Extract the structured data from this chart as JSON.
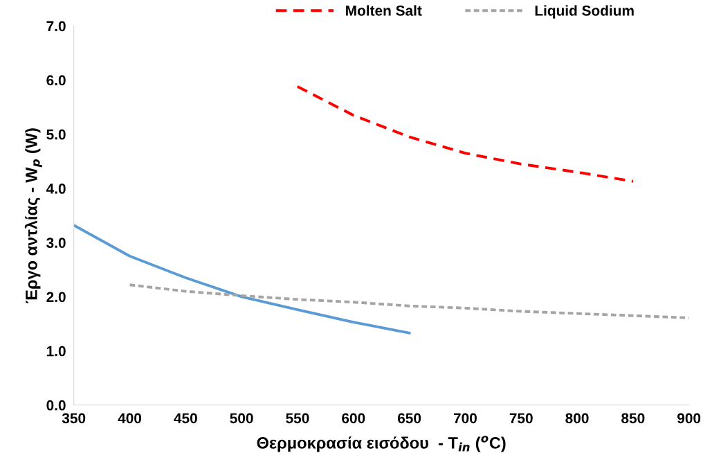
{
  "chart_data": {
    "type": "line",
    "xlabel": "Θερμοκρασία εισόδου  - T$_{in}$ ($^{o}$C)",
    "ylabel": "Έργο αντλίας - W$_{p}$ (W)",
    "xlim": [
      350,
      900
    ],
    "xticks": [
      350,
      400,
      450,
      500,
      550,
      600,
      650,
      700,
      750,
      800,
      850,
      900
    ],
    "ylim": [
      0,
      7
    ],
    "yticks": [
      {
        "value": 0,
        "label": "0.0"
      },
      {
        "value": 1,
        "label": "1.0"
      },
      {
        "value": 2,
        "label": "2.0"
      },
      {
        "value": 3,
        "label": "3.0"
      },
      {
        "value": 4,
        "label": "4.0"
      },
      {
        "value": 5,
        "label": "5.0"
      },
      {
        "value": 6,
        "label": "6.0"
      },
      {
        "value": 7,
        "label": "7.0"
      }
    ],
    "grid": false,
    "legend": "top",
    "marker": "none",
    "series": [
      {
        "color": "#5b9bd5",
        "line_style": "solid",
        "x": [
          350,
          400,
          450,
          500,
          550,
          600,
          650
        ],
        "values": [
          3.32,
          2.75,
          2.35,
          2.0,
          1.76,
          1.53,
          1.33
        ]
      },
      {
        "name": "Molten Salt",
        "color": "#ff0000",
        "line_style": "dashed",
        "x": [
          550,
          600,
          650,
          700,
          750,
          800,
          850
        ],
        "values": [
          5.88,
          5.35,
          4.95,
          4.65,
          4.45,
          4.3,
          4.13
        ]
      },
      {
        "name": "Liquid Sodium",
        "color": "#a5a5a5",
        "line_style": "dotted",
        "x": [
          400,
          450,
          500,
          550,
          600,
          650,
          700,
          750,
          800,
          850,
          900
        ],
        "values": [
          2.22,
          2.1,
          2.02,
          1.95,
          1.9,
          1.83,
          1.79,
          1.73,
          1.69,
          1.65,
          1.61
        ]
      }
    ]
  }
}
